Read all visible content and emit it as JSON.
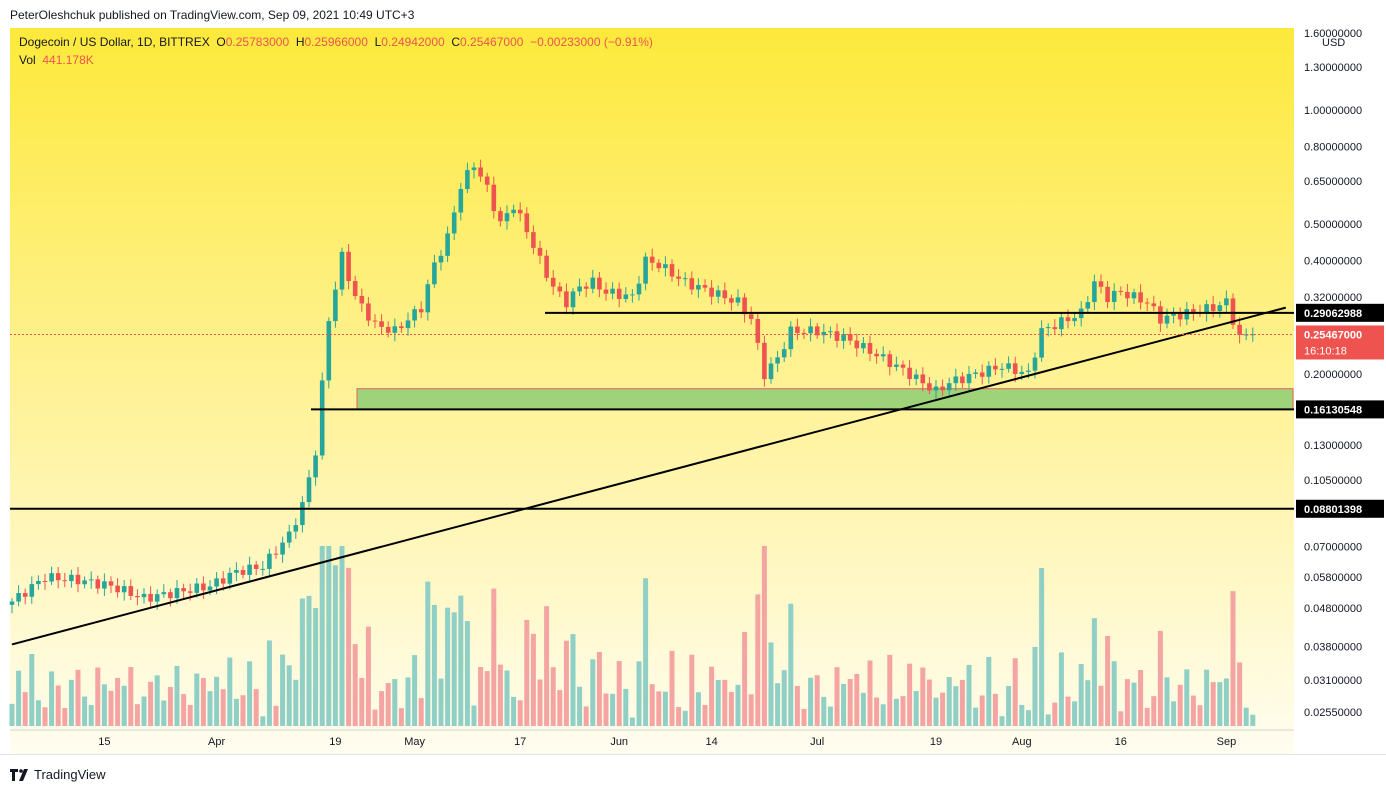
{
  "header": {
    "publisher_line": "PeterOleshchuk published on TradingView.com, Sep 09, 2021 10:49 UTC+3"
  },
  "legend": {
    "symbol": "Dogecoin / US Dollar, 1D, BITTREX",
    "open_label": "O",
    "open": "0.25783000",
    "high_label": "H",
    "high": "0.25966000",
    "low_label": "L",
    "low": "0.24942000",
    "close_label": "C",
    "close": "0.25467000",
    "change": "−0.00233000 (−0.91%)",
    "vol_label": "Vol",
    "vol": "441.178K"
  },
  "price_axis": {
    "currency": "USD",
    "ticks": [
      "1.60000000",
      "1.30000000",
      "1.00000000",
      "0.80000000",
      "0.65000000",
      "0.50000000",
      "0.40000000",
      "0.32000000",
      "0.20000000",
      "0.13000000",
      "0.10500000",
      "0.07000000",
      "0.05800000",
      "0.04800000",
      "0.03800000",
      "0.03100000",
      "0.02550000"
    ],
    "tick_values": [
      1.6,
      1.3,
      1.0,
      0.8,
      0.65,
      0.5,
      0.4,
      0.32,
      0.2,
      0.13,
      0.105,
      0.07,
      0.058,
      0.048,
      0.038,
      0.031,
      0.0255
    ],
    "level_labels": [
      {
        "text": "0.29062988",
        "value": 0.29062988
      },
      {
        "text": "0.16130548",
        "value": 0.16130548
      },
      {
        "text": "0.08801398",
        "value": 0.08801398
      }
    ],
    "current_price": "0.25467000",
    "current_value": 0.25467,
    "countdown": "16:10:18"
  },
  "time_axis": {
    "labels": [
      "15",
      "Apr",
      "19",
      "May",
      "17",
      "Jun",
      "14",
      "Jul",
      "19",
      "Aug",
      "16",
      "Sep"
    ],
    "days": [
      14,
      31,
      49,
      61,
      77,
      92,
      106,
      122,
      140,
      153,
      168,
      184
    ]
  },
  "footer": {
    "brand": "TradingView"
  },
  "colors": {
    "up": "#26a69a",
    "down": "#ef5350",
    "vol_up": "#8fcfc6",
    "vol_down": "#f4a5a3",
    "zone": "#9ed37a",
    "bg_top": "#fde93b",
    "bg_bottom": "#fffdf0"
  },
  "chart_data": {
    "type": "candlestick",
    "scale": "log",
    "x_unit": "days since Mar 1 2021",
    "key_closes": [
      [
        0,
        0.05
      ],
      [
        5,
        0.058
      ],
      [
        10,
        0.057
      ],
      [
        15,
        0.055
      ],
      [
        20,
        0.051
      ],
      [
        25,
        0.053
      ],
      [
        30,
        0.055
      ],
      [
        34,
        0.06
      ],
      [
        38,
        0.062
      ],
      [
        42,
        0.075
      ],
      [
        44,
        0.09
      ],
      [
        46,
        0.125
      ],
      [
        48,
        0.28
      ],
      [
        50,
        0.41
      ],
      [
        52,
        0.32
      ],
      [
        55,
        0.27
      ],
      [
        58,
        0.26
      ],
      [
        62,
        0.3
      ],
      [
        64,
        0.39
      ],
      [
        66,
        0.46
      ],
      [
        68,
        0.63
      ],
      [
        70,
        0.72
      ],
      [
        72,
        0.62
      ],
      [
        74,
        0.5
      ],
      [
        76,
        0.56
      ],
      [
        78,
        0.48
      ],
      [
        80,
        0.4
      ],
      [
        82,
        0.34
      ],
      [
        84,
        0.31
      ],
      [
        86,
        0.34
      ],
      [
        88,
        0.35
      ],
      [
        90,
        0.33
      ],
      [
        94,
        0.32
      ],
      [
        96,
        0.4
      ],
      [
        98,
        0.39
      ],
      [
        102,
        0.35
      ],
      [
        106,
        0.33
      ],
      [
        110,
        0.31
      ],
      [
        112,
        0.28
      ],
      [
        114,
        0.2
      ],
      [
        116,
        0.22
      ],
      [
        118,
        0.26
      ],
      [
        122,
        0.26
      ],
      [
        126,
        0.25
      ],
      [
        130,
        0.23
      ],
      [
        134,
        0.21
      ],
      [
        136,
        0.2
      ],
      [
        140,
        0.18
      ],
      [
        142,
        0.19
      ],
      [
        146,
        0.2
      ],
      [
        150,
        0.21
      ],
      [
        154,
        0.2
      ],
      [
        156,
        0.26
      ],
      [
        158,
        0.27
      ],
      [
        162,
        0.29
      ],
      [
        164,
        0.35
      ],
      [
        166,
        0.32
      ],
      [
        168,
        0.33
      ],
      [
        172,
        0.31
      ],
      [
        174,
        0.28
      ],
      [
        178,
        0.29
      ],
      [
        182,
        0.3
      ],
      [
        184,
        0.31
      ],
      [
        186,
        0.25
      ],
      [
        188,
        0.255
      ]
    ],
    "support_zone": [
      0.16130548,
      0.183
    ],
    "horizontal_levels": [
      0.29062988,
      0.16130548,
      0.08801398
    ],
    "trendline": [
      [
        0,
        0.0385
      ],
      [
        193,
        0.3
      ]
    ]
  }
}
